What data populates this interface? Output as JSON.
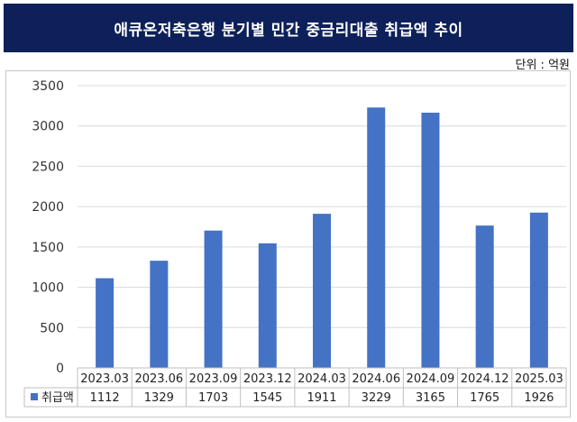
{
  "header": {
    "title": "애큐온저축은행 분기별 민간 중금리대출 취급액 추이",
    "unit": "단위 : 억원"
  },
  "colors": {
    "header_bg": "#0e2059",
    "bar": "#4472c4",
    "grid": "#d9d9d9"
  },
  "chart_data": {
    "type": "bar",
    "title": "애큐온저축은행 분기별 민간 중금리대출 취급액 추이",
    "categories": [
      "2023.03",
      "2023.06",
      "2023.09",
      "2023.12",
      "2024.03",
      "2024.06",
      "2024.09",
      "2024.12",
      "2025.03"
    ],
    "series": [
      {
        "name": "취급액",
        "values": [
          1112,
          1329,
          1703,
          1545,
          1911,
          3229,
          3165,
          1765,
          1926
        ]
      }
    ],
    "ylim": [
      0,
      3500
    ],
    "yticks": [
      0,
      500,
      1000,
      1500,
      2000,
      2500,
      3000,
      3500
    ],
    "grid": true,
    "legend": "data-table-left",
    "data_table": true
  }
}
